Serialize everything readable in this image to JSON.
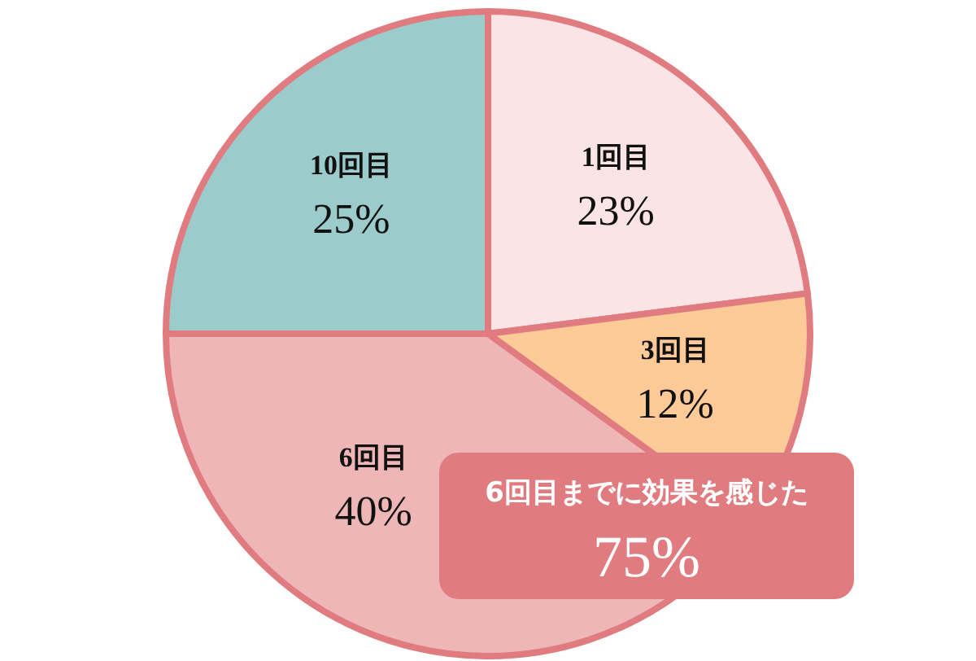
{
  "chart_data": {
    "type": "pie",
    "categories": [
      "1回目",
      "3回目",
      "6回目",
      "10回目"
    ],
    "values": [
      23,
      12,
      40,
      25
    ],
    "colors": [
      "#fbe4e6",
      "#fdca98",
      "#efb6b8",
      "#9ccbcc"
    ],
    "value_labels": [
      "23%",
      "12%",
      "40%",
      "25%"
    ],
    "annotations": [
      "6回目までに効果を感じた",
      "75%"
    ]
  }
}
